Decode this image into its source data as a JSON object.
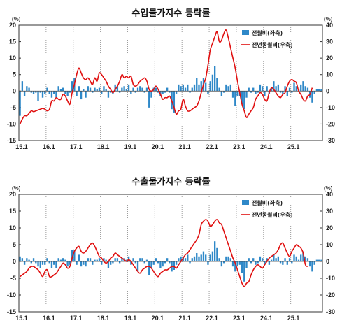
{
  "chart_data": [
    {
      "type": "bar+line",
      "title": "수입물가지수 등락률",
      "left_unit": "(%)",
      "right_unit": "(%)",
      "ylim_left": [
        -15,
        20
      ],
      "ylim_right": [
        -30,
        40
      ],
      "left_ticks": [
        "20",
        "15",
        "10",
        "5",
        "0",
        "-5",
        "-10",
        "-15"
      ],
      "right_ticks": [
        "40",
        "30",
        "20",
        "10",
        "0",
        "-10",
        "-20",
        "-30"
      ],
      "x_ticks": [
        "15.1",
        "16.1",
        "17.1",
        "18.1",
        "19.1",
        "20.1",
        "21.1",
        "22.1",
        "23.1",
        "24.1",
        "25.1"
      ],
      "grid": "vertical dotted at year starts",
      "legend_position": "top-right",
      "series": [
        {
          "name": "전월비(좌축)",
          "kind": "bar",
          "axis": "left",
          "color": "#2e88c8",
          "values": [
            -7.5,
            3,
            -1.5,
            1.5,
            1,
            -0.5,
            -1,
            -0.5,
            -3,
            -0.5,
            -2,
            -1,
            1,
            -1,
            -2,
            -1,
            -2,
            1.5,
            0.5,
            1,
            -1,
            -1.5,
            -0.5,
            3,
            4,
            -1.5,
            1.5,
            -2.5,
            0.5,
            -2,
            1.5,
            1,
            -0.5,
            1,
            0.5,
            1,
            -1,
            1.5,
            0.5,
            -2,
            -0.5,
            -1,
            2,
            1.5,
            -0.5,
            1,
            1.5,
            0.5,
            2,
            -1,
            1,
            -0.5,
            1,
            1.5,
            1,
            -0.5,
            1,
            -5,
            -2,
            1,
            1,
            -0.5,
            -1.5,
            -1,
            -0.5,
            1,
            -0.5,
            -5.5,
            -6.5,
            -1,
            2,
            1.5,
            2,
            1,
            2,
            -0.5,
            1,
            2,
            4,
            2,
            3,
            4,
            2.5,
            -1,
            3,
            5,
            7.5,
            4,
            1,
            -1.5,
            -0.5,
            2,
            1.5,
            2,
            -2,
            -4.5,
            -1.5,
            -1.5,
            -4,
            -5.5,
            -2,
            1,
            -0.5,
            1,
            -1,
            -0.5,
            2,
            1.5,
            -1.5,
            1.5,
            -1,
            1,
            3,
            1.5,
            2,
            -0.5,
            -1,
            1.5,
            -1.5,
            1,
            -0.5,
            2.5,
            1.5,
            0.5,
            2,
            3,
            1.5,
            1,
            -2,
            -3.5,
            -1,
            0.5,
            0.5,
            0.5
          ]
        },
        {
          "name": "전년동월비(우축)",
          "kind": "line",
          "axis": "right",
          "color": "#e01010",
          "values": [
            -20,
            -17,
            -15,
            -15,
            -13.5,
            -12,
            -12.5,
            -12,
            -11.5,
            -11,
            -10.5,
            -11,
            -12,
            -11,
            -6,
            -6,
            -4,
            -5,
            -5,
            -2,
            -3,
            -6,
            -8,
            -1,
            4,
            10,
            14,
            11,
            8,
            7,
            8,
            6,
            4,
            8,
            6,
            11,
            10,
            8,
            6,
            3,
            1,
            -1,
            1,
            3,
            6,
            10,
            8,
            9,
            8,
            9,
            4,
            3,
            4,
            6,
            7,
            8,
            6,
            1,
            0,
            1,
            3,
            1,
            -2,
            -5,
            -4,
            -4,
            -3,
            -6,
            -10,
            -14,
            -12,
            -11,
            -5,
            -9,
            -12,
            -12,
            -11,
            -10,
            -9,
            -6,
            -1,
            4,
            8,
            16,
            25,
            29,
            33,
            36,
            30,
            31,
            35,
            37,
            32,
            26,
            20,
            14,
            6,
            -1,
            -8,
            -12,
            -16,
            -14,
            -12,
            -10,
            -5,
            -3,
            -1,
            -2,
            -5,
            -6,
            -1,
            2,
            1,
            -1,
            -3,
            -4,
            -2,
            -1,
            3,
            6,
            7,
            6,
            5,
            0,
            -2,
            -5,
            -6,
            -3,
            -2,
            2
          ]
        }
      ]
    },
    {
      "type": "bar+line",
      "title": "수출물가지수 등락률",
      "left_unit": "(%)",
      "right_unit": "(%)",
      "ylim_left": [
        -15,
        20
      ],
      "ylim_right": [
        -30,
        40
      ],
      "left_ticks": [
        "20",
        "15",
        "10",
        "5",
        "0",
        "-5",
        "-10",
        "-15"
      ],
      "right_ticks": [
        "40",
        "30",
        "20",
        "10",
        "0",
        "-10",
        "-20",
        "-30"
      ],
      "x_ticks": [
        "15.1",
        "16.1",
        "17.1",
        "18.1",
        "19.1",
        "20.1",
        "21.1",
        "22.1",
        "23.1",
        "24.1",
        "25.1"
      ],
      "grid": "vertical dotted at year starts",
      "legend_position": "top-right",
      "series": [
        {
          "name": "전월비(좌축)",
          "kind": "bar",
          "axis": "left",
          "color": "#2e88c8",
          "values": [
            1.5,
            1,
            -1,
            1,
            0.5,
            -0.5,
            1,
            -0.5,
            -1.5,
            -2,
            -1,
            -1,
            1,
            -0.5,
            -2,
            -1,
            -2,
            1,
            0.5,
            1,
            0.5,
            -1.5,
            -1,
            3.5,
            3.5,
            -1,
            2,
            -1.5,
            -1,
            -1.5,
            1,
            1,
            -1,
            0.5,
            0.5,
            1,
            -1,
            1,
            0.5,
            -2,
            -1,
            -0.5,
            1,
            1,
            -0.5,
            1,
            1,
            0.5,
            1.5,
            -1,
            1,
            -0.5,
            -3,
            1,
            1,
            -0.5,
            0.5,
            -4,
            -2,
            -1,
            1,
            -0.5,
            -2,
            -1.5,
            -0.5,
            1,
            -0.5,
            -3,
            -2.5,
            -1,
            1,
            1.5,
            1.5,
            1,
            2,
            -0.5,
            1,
            1.5,
            2.5,
            1.5,
            2,
            3,
            2,
            -1,
            2,
            3,
            6,
            4,
            1,
            -1.5,
            -0.5,
            1.5,
            1.5,
            1,
            -1.5,
            -3,
            -1.5,
            -1,
            -3.5,
            -6,
            -2,
            1,
            -0.5,
            1,
            -1,
            -0.5,
            1.5,
            1,
            -1,
            1,
            -1,
            0.5,
            2,
            1,
            1.5,
            -0.5,
            -1,
            1,
            -1,
            1,
            -0.5,
            2,
            1.5,
            0.5,
            2,
            3,
            1.5,
            1,
            -1.5,
            -3,
            -1,
            0.5,
            0.5,
            0.5
          ]
        },
        {
          "name": "전년동월비(우축)",
          "kind": "line",
          "axis": "right",
          "color": "#e01010",
          "values": [
            -9,
            -8,
            -7,
            -6,
            -4,
            -3,
            -3,
            -4,
            -5,
            -7,
            -9,
            -6,
            -5,
            -9,
            -9,
            -8,
            -7,
            -5,
            -3,
            -1,
            -2,
            -4,
            -3,
            2,
            6,
            8,
            9,
            6,
            5,
            6,
            8,
            10,
            11,
            9,
            6,
            3,
            2,
            0,
            -1,
            0,
            2,
            3,
            5,
            4,
            3,
            2,
            1,
            0,
            1,
            0,
            -2,
            -4,
            -6,
            -7,
            -5,
            -4,
            -3,
            -3,
            -4,
            -6,
            -8,
            -9,
            -7,
            -6,
            -5,
            -5,
            -4,
            -3,
            -3,
            -4,
            -2,
            0,
            2,
            4,
            5,
            7,
            9,
            11,
            13,
            16,
            22,
            24,
            25,
            24,
            21,
            22,
            24,
            25,
            23,
            22,
            18,
            14,
            10,
            6,
            2,
            -1,
            -5,
            -9,
            -13,
            -15,
            -13,
            -12,
            -8,
            -5,
            -3,
            -2,
            -3,
            -4,
            -2,
            0,
            2,
            3,
            4,
            5,
            7,
            10,
            11,
            8,
            5,
            3,
            6,
            8,
            10,
            9,
            8,
            5,
            -2,
            -3
          ]
        }
      ]
    }
  ]
}
